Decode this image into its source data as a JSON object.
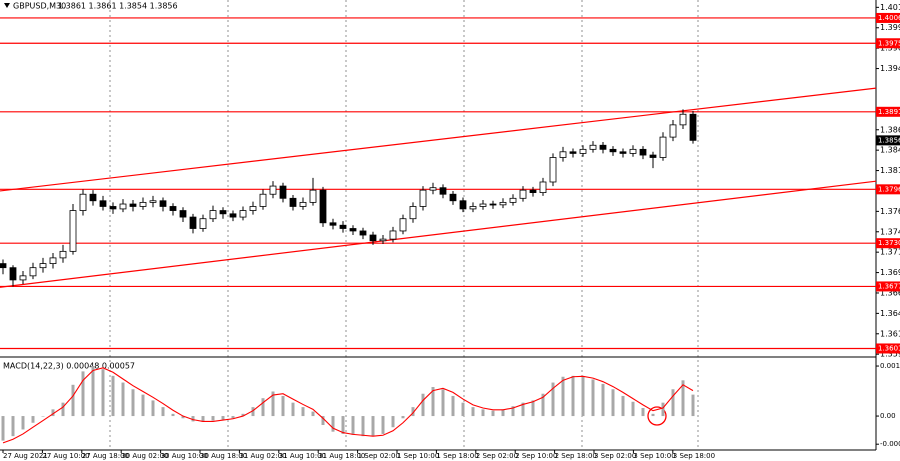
{
  "chart_data": {
    "type": "candlestick",
    "title": "GBPUSD,M30",
    "header_values": "1.3861 1.3861 1.3854 1.3856",
    "time_labels": [
      "27 Aug 2021",
      "27 Aug 10:00",
      "27 Aug 18:00",
      "30 Aug 02:00",
      "30 Aug 10:00",
      "30 Aug 18:00",
      "31 Aug 02:00",
      "31 Aug 10:00",
      "31 Aug 18:00",
      "1 Sep 02:00",
      "1 Sep 10:00",
      "1 Sep 18:00",
      "2 Sep 02:00",
      "2 Sep 10:00",
      "2 Sep 18:00",
      "3 Sep 02:00",
      "3 Sep 10:00",
      "3 Sep 18:00"
    ],
    "candles": [
      [
        1.3705,
        1.371,
        1.3692,
        1.37
      ],
      [
        1.37,
        1.3703,
        1.3677,
        1.3685
      ],
      [
        1.3685,
        1.3696,
        1.368,
        1.369
      ],
      [
        1.369,
        1.3706,
        1.3686,
        1.37
      ],
      [
        1.37,
        1.3712,
        1.3694,
        1.3705
      ],
      [
        1.3705,
        1.3718,
        1.3699,
        1.3712
      ],
      [
        1.3712,
        1.3728,
        1.3706,
        1.372
      ],
      [
        1.372,
        1.3778,
        1.3716,
        1.377
      ],
      [
        1.377,
        1.3796,
        1.3764,
        1.379
      ],
      [
        1.379,
        1.3795,
        1.3776,
        1.3782
      ],
      [
        1.3782,
        1.3788,
        1.377,
        1.3775
      ],
      [
        1.3775,
        1.378,
        1.3766,
        1.3772
      ],
      [
        1.3772,
        1.3784,
        1.3768,
        1.3778
      ],
      [
        1.3778,
        1.3783,
        1.3769,
        1.3775
      ],
      [
        1.3775,
        1.3786,
        1.3771,
        1.378
      ],
      [
        1.378,
        1.3788,
        1.3774,
        1.3782
      ],
      [
        1.3782,
        1.3786,
        1.3769,
        1.3775
      ],
      [
        1.3775,
        1.3779,
        1.3764,
        1.377
      ],
      [
        1.377,
        1.3774,
        1.3756,
        1.3762
      ],
      [
        1.3762,
        1.3766,
        1.3742,
        1.3748
      ],
      [
        1.3748,
        1.3765,
        1.3744,
        1.376
      ],
      [
        1.376,
        1.3776,
        1.3756,
        1.377
      ],
      [
        1.377,
        1.3774,
        1.376,
        1.3766
      ],
      [
        1.3766,
        1.377,
        1.3757,
        1.3762
      ],
      [
        1.3762,
        1.3775,
        1.3758,
        1.377
      ],
      [
        1.377,
        1.3781,
        1.3765,
        1.3775
      ],
      [
        1.3775,
        1.3796,
        1.3771,
        1.379
      ],
      [
        1.379,
        1.3806,
        1.3785,
        1.38
      ],
      [
        1.38,
        1.3804,
        1.378,
        1.3785
      ],
      [
        1.3785,
        1.3789,
        1.377,
        1.3775
      ],
      [
        1.3775,
        1.3786,
        1.3771,
        1.378
      ],
      [
        1.378,
        1.381,
        1.3776,
        1.3795
      ],
      [
        1.3795,
        1.3799,
        1.375,
        1.3755
      ],
      [
        1.3755,
        1.376,
        1.3747,
        1.3752
      ],
      [
        1.3752,
        1.3757,
        1.3743,
        1.3748
      ],
      [
        1.3748,
        1.3752,
        1.374,
        1.3745
      ],
      [
        1.3745,
        1.3749,
        1.3735,
        1.374
      ],
      [
        1.374,
        1.3744,
        1.3728,
        1.3733
      ],
      [
        1.3733,
        1.374,
        1.3729,
        1.3735
      ],
      [
        1.3735,
        1.375,
        1.3731,
        1.3745
      ],
      [
        1.3745,
        1.3765,
        1.3741,
        1.376
      ],
      [
        1.376,
        1.378,
        1.3755,
        1.3775
      ],
      [
        1.3775,
        1.38,
        1.377,
        1.3795
      ],
      [
        1.3795,
        1.3804,
        1.379,
        1.3798
      ],
      [
        1.3798,
        1.3802,
        1.3785,
        1.379
      ],
      [
        1.379,
        1.3794,
        1.3777,
        1.3782
      ],
      [
        1.3782,
        1.3786,
        1.3768,
        1.3772
      ],
      [
        1.3772,
        1.378,
        1.3768,
        1.3775
      ],
      [
        1.3775,
        1.3783,
        1.3771,
        1.3778
      ],
      [
        1.3778,
        1.3782,
        1.3772,
        1.3777
      ],
      [
        1.3777,
        1.3785,
        1.3773,
        1.378
      ],
      [
        1.378,
        1.379,
        1.3776,
        1.3785
      ],
      [
        1.3785,
        1.38,
        1.3781,
        1.3795
      ],
      [
        1.3795,
        1.3799,
        1.3787,
        1.3792
      ],
      [
        1.3792,
        1.381,
        1.3788,
        1.3805
      ],
      [
        1.3805,
        1.384,
        1.38,
        1.3835
      ],
      [
        1.3835,
        1.3848,
        1.383,
        1.3842
      ],
      [
        1.3842,
        1.3846,
        1.3835,
        1.384
      ],
      [
        1.384,
        1.385,
        1.3836,
        1.3845
      ],
      [
        1.3845,
        1.3855,
        1.3841,
        1.385
      ],
      [
        1.385,
        1.3854,
        1.384,
        1.3845
      ],
      [
        1.3845,
        1.3849,
        1.3837,
        1.3842
      ],
      [
        1.3842,
        1.3846,
        1.3835,
        1.384
      ],
      [
        1.384,
        1.385,
        1.3836,
        1.3845
      ],
      [
        1.3845,
        1.3849,
        1.3833,
        1.3838
      ],
      [
        1.3838,
        1.3842,
        1.3822,
        1.3835
      ],
      [
        1.3835,
        1.3866,
        1.3831,
        1.386
      ],
      [
        1.386,
        1.3881,
        1.3855,
        1.3875
      ],
      [
        1.3875,
        1.3894,
        1.387,
        1.3888
      ],
      [
        1.3888,
        1.3892,
        1.3852,
        1.3856
      ]
    ],
    "ylim": [
      1.3593,
      1.4028
    ],
    "yticks": [
      1.4019,
      1.3994,
      1.3969,
      1.3944,
      1.3869,
      1.3844,
      1.3819,
      1.3769,
      1.3744,
      1.3719,
      1.3694,
      1.3669,
      1.3644,
      1.3619,
      1.3594
    ],
    "levels": [
      1.4006,
      1.3975,
      1.3891,
      1.3796,
      {
        "value": 1.373,
        "label": "1.3730"
      },
      1.3677,
      1.3601
    ],
    "level_color": "#ff0000",
    "channel_lines": [
      {
        "left": 1.3794,
        "right": 1.392
      },
      {
        "left": 1.3676,
        "right": 1.3806
      }
    ],
    "macd": {
      "title": "MACD(14,22,3) 0.00048 0.00057",
      "histogram": [
        -0.00055,
        -0.00045,
        -0.0003,
        -0.00015,
        0,
        0.00015,
        0.0003,
        0.0007,
        0.001,
        0.00112,
        0.00105,
        0.0009,
        0.00075,
        0.0006,
        0.00048,
        0.00035,
        0.0002,
        5e-05,
        -5e-05,
        -0.00012,
        -0.00013,
        -0.0001,
        -8e-05,
        -5e-05,
        5e-05,
        0.0002,
        0.0004,
        0.00055,
        0.00045,
        0.0003,
        0.0002,
        0.0001,
        -0.0002,
        -0.00035,
        -0.0004,
        -0.00042,
        -0.00045,
        -0.00045,
        -0.0004,
        -0.00025,
        -5e-05,
        0.0002,
        0.0005,
        0.00065,
        0.0006,
        0.00045,
        0.0003,
        0.0002,
        0.00015,
        0.00012,
        0.00015,
        0.00022,
        0.0003,
        0.00035,
        0.0005,
        0.00075,
        0.00088,
        0.0009,
        0.00088,
        0.00082,
        0.00072,
        0.0006,
        0.00045,
        0.00032,
        0.00018,
        5e-05,
        0.0003,
        0.0006,
        0.0008,
        0.00048
      ],
      "signal": [
        -0.0006,
        -0.00052,
        -0.0004,
        -0.00025,
        -0.0001,
        5e-05,
        0.0002,
        0.00045,
        0.0008,
        0.00102,
        0.00108,
        0.00098,
        0.00083,
        0.00068,
        0.00055,
        0.00042,
        0.00028,
        0.00013,
        0,
        -8e-05,
        -0.00012,
        -0.00012,
        -9e-05,
        -6e-05,
        0,
        0.00012,
        0.0003,
        0.00047,
        0.0005,
        0.00038,
        0.00026,
        0.00015,
        -5e-05,
        -0.00027,
        -0.00037,
        -0.00041,
        -0.00043,
        -0.00045,
        -0.00043,
        -0.00033,
        -0.00015,
        7e-05,
        0.00035,
        0.00057,
        0.00062,
        0.00053,
        0.00038,
        0.00025,
        0.00018,
        0.00014,
        0.00014,
        0.00018,
        0.00026,
        0.00032,
        0.00042,
        0.00062,
        0.0008,
        0.00088,
        0.00089,
        0.00085,
        0.00077,
        0.00066,
        0.00053,
        0.00039,
        0.00025,
        0.00012,
        0.00018,
        0.00045,
        0.0007,
        0.00057
      ],
      "ylim": [
        -0.00076,
        0.0013
      ],
      "yticks": [
        0.00112,
        {
          "value": 0,
          "label": "0.00"
        },
        -0.00063
      ],
      "histogram_color": "#a8a8a8",
      "signal_color": "#ff0000"
    }
  }
}
